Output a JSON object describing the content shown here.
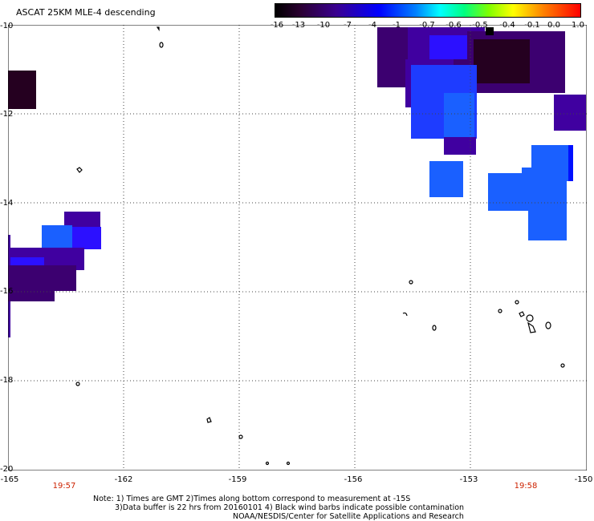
{
  "title": "ASCAT 25KM MLE-4 descending",
  "colorbar": {
    "tick_labels": [
      "-16",
      "-13",
      "-10",
      "-7",
      "-4",
      "-1",
      "-0.7",
      "-0.6",
      "-0.5",
      "-0.4",
      "-0.1",
      "0.0",
      "1.0"
    ]
  },
  "map": {
    "y_ticks": [
      "-10",
      "-12",
      "-14",
      "-16",
      "-18",
      "-20"
    ],
    "x_ticks": [
      "-165",
      "-162",
      "-159",
      "-156",
      "-153",
      "-150"
    ],
    "time_left": "19:57",
    "time_right": "19:58"
  },
  "notes": [
    "Note: 1) Times are GMT 2)Times along bottom correspond to measurement at -15S",
    "3)Data buffer is 22 hrs from 20160101 4) Black wind barbs indicate possible contamination",
    "NOAA/NESDIS/Center for Satellite Applications and Research"
  ],
  "colors": {
    "dark": "#250020",
    "purple": "#3c0070",
    "indigo": "#4000a0",
    "blue_violet": "#2c10ff",
    "blue": "#1e3cff",
    "azure": "#1a60ff",
    "sky": "#0080ff"
  }
}
